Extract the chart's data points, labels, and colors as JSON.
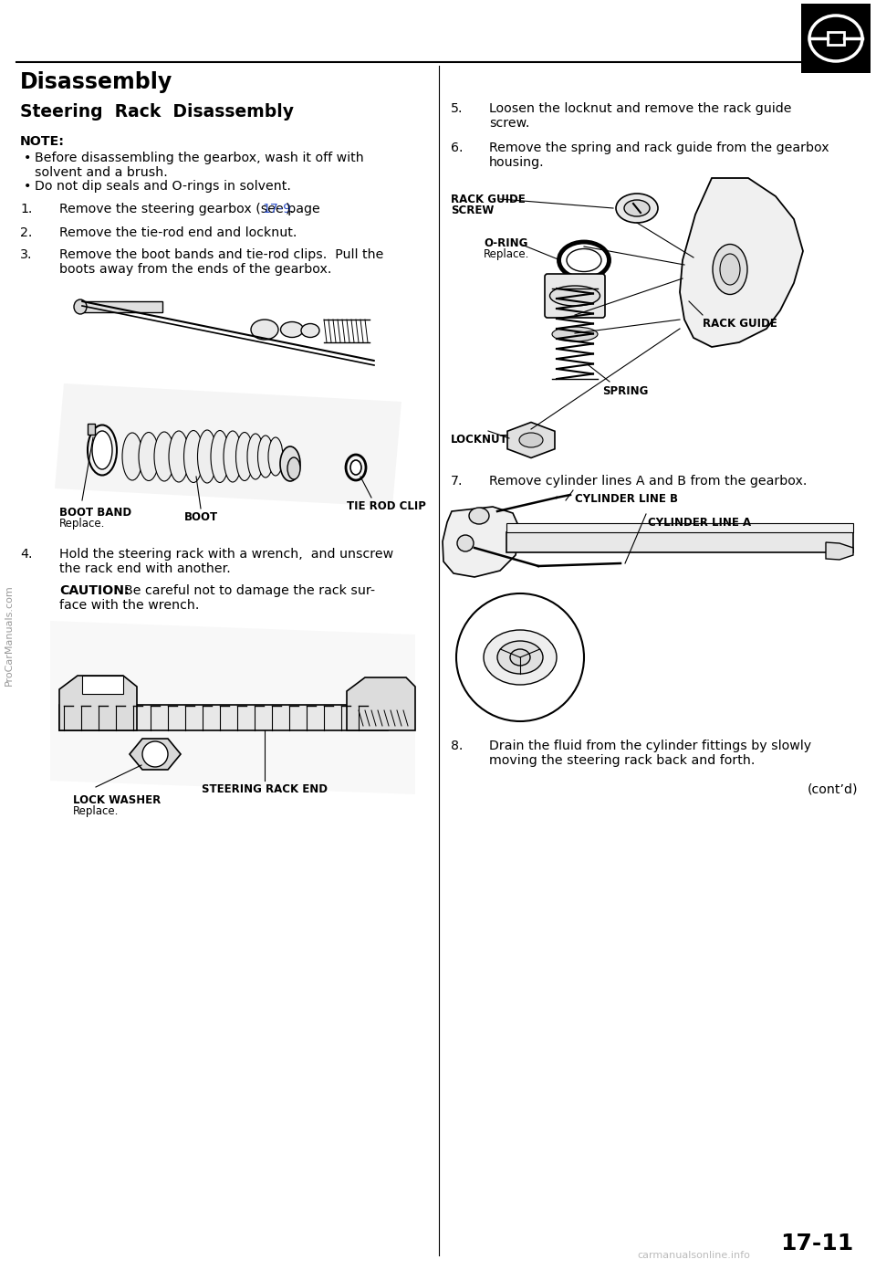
{
  "bg_color": "#ffffff",
  "text_color": "#000000",
  "blue_color": "#3355cc",
  "page_number": "17-11",
  "title": "Disassembly",
  "subtitle": "Steering  Rack  Disassembly",
  "note_label": "NOTE:",
  "bullet1_line1": "Before disassembling the gearbox, wash it off with",
  "bullet1_line2": "solvent and a brush.",
  "bullet2": "Do not dip seals and O-rings in solvent.",
  "step1_pre": "Remove the steering gearbox (see page ",
  "step1_link": "17-9",
  "step1_post": ").",
  "step2": "Remove the tie-rod end and locknut.",
  "step3_line1": "Remove the boot bands and tie-rod clips.  Pull the",
  "step3_line2": "boots away from the ends of the gearbox.",
  "step4_line1": "Hold the steering rack with a wrench,  and unscrew",
  "step4_line2": "the rack end with another.",
  "caution_label": "CAUTION:",
  "caution_line1": "  Be careful not to damage the rack sur-",
  "caution_line2": "face with the wrench.",
  "step5_line1": "Loosen the locknut and remove the rack guide",
  "step5_line2": "screw.",
  "step6_line1": "Remove the spring and rack guide from the gearbox",
  "step6_line2": "housing.",
  "step7": "Remove cylinder lines A and B from the gearbox.",
  "step8_line1": "Drain the fluid from the cylinder fittings by slowly",
  "step8_line2": "moving the steering rack back and forth.",
  "contd": "(cont’d)",
  "lbl_boot_band": "BOOT BAND",
  "lbl_replace1": "Replace.",
  "lbl_boot": "BOOT",
  "lbl_tie_rod_clip": "TIE ROD CLIP",
  "lbl_rack_guide_screw": "RACK GUIDE",
  "lbl_rack_guide_screw2": "SCREW",
  "lbl_oring": "O-RING",
  "lbl_oring2": "Replace.",
  "lbl_rack_guide": "RACK GUIDE",
  "lbl_spring": "SPRING",
  "lbl_locknut": "LOCKNUT",
  "lbl_cyl_b": "CYLINDER LINE B",
  "lbl_cyl_a": "CYLINDER LINE A",
  "lbl_steering_rack_end": "STEERING RACK END",
  "lbl_lock_washer": "LOCK WASHER",
  "lbl_replace4": "Replace.",
  "watermark_left": "ProCarManuals.com",
  "watermark_bottom": "carmanualsonline.info"
}
